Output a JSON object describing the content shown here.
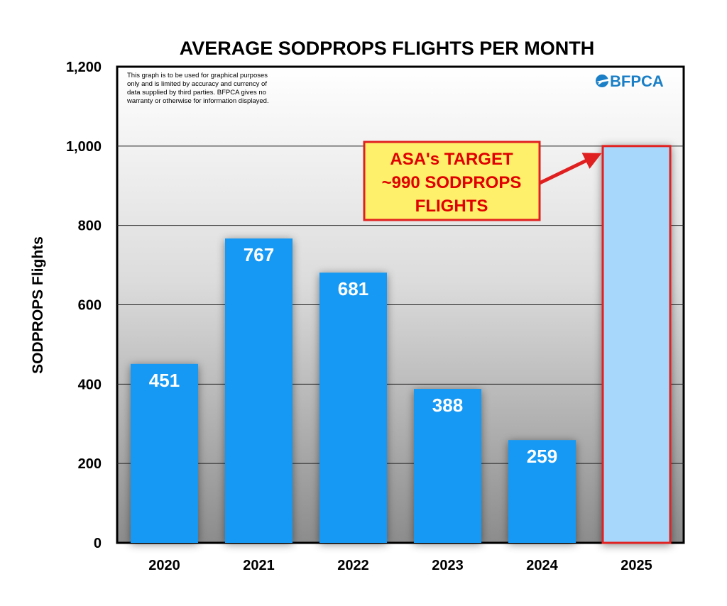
{
  "chart_data": {
    "type": "bar",
    "title": "AVERAGE SODPROPS FLIGHTS PER MONTH",
    "xlabel": "",
    "ylabel": "SODPROPS Flights",
    "ylim": [
      0,
      1200
    ],
    "yticks": [
      "0",
      "200",
      "400",
      "600",
      "800",
      "1,000",
      "1,200"
    ],
    "ytick_values": [
      0,
      200,
      400,
      600,
      800,
      1000,
      1200
    ],
    "categories": [
      "2020",
      "2021",
      "2022",
      "2023",
      "2024",
      "2025"
    ],
    "values": [
      451,
      767,
      681,
      388,
      259,
      1000
    ],
    "value_labels": [
      "451",
      "767",
      "681",
      "388",
      "259",
      ""
    ],
    "bar_color": "#1399f4",
    "target_bar_fill": "#a7d8fb",
    "target_bar_border": "#e02020",
    "grid": true,
    "annotation": {
      "lines": [
        "ASA's TARGET",
        "~990 SODPROPS",
        "FLIGHTS"
      ],
      "box_fill": "#fef06a",
      "border_color": "#e02020",
      "text_color": "#e00000",
      "arrow_to_category": "2025"
    },
    "disclaimer": [
      "This graph is to be used for graphical purposes",
      "only and is limited by accuracy and currency of",
      "data supplied by third parties. BFPCA gives no",
      "warranty or otherwise for information displayed."
    ],
    "logo": {
      "text": "BFPCA",
      "icon": "plane-icon",
      "color": "#1a7fc6"
    }
  }
}
